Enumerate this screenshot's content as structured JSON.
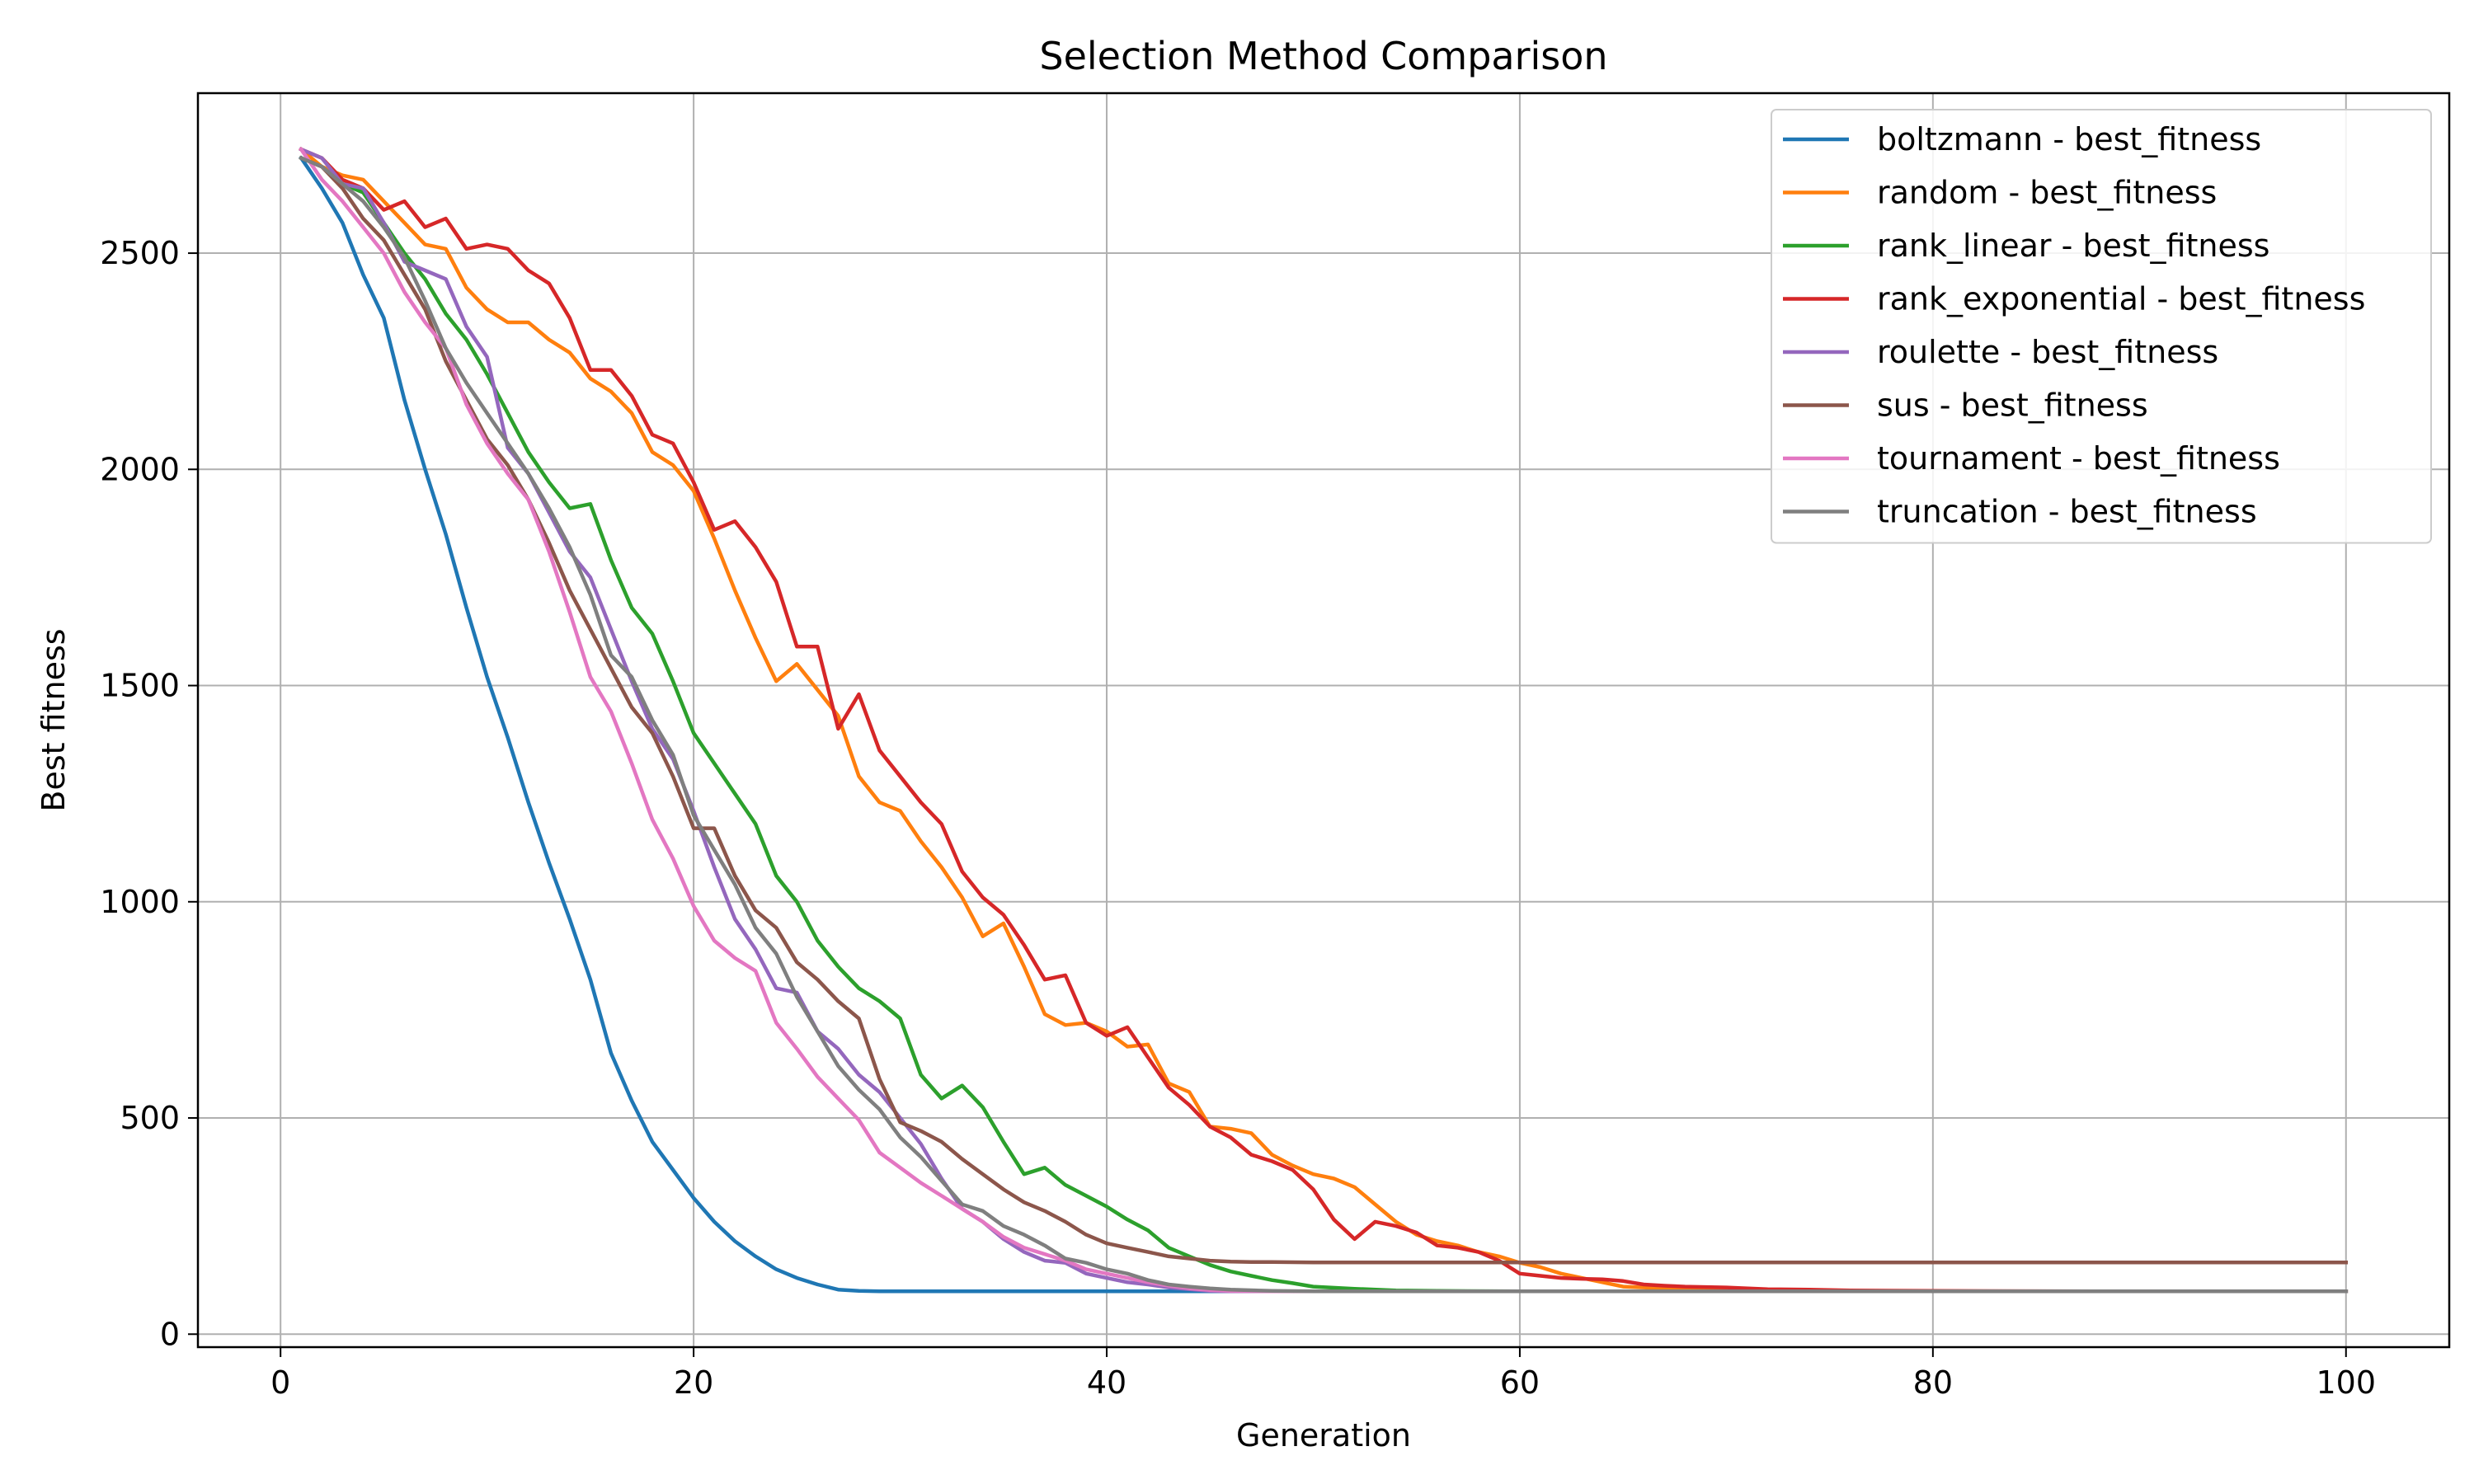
{
  "chart_data": {
    "type": "line",
    "title": "Selection Method Comparison",
    "xlabel": "Generation",
    "ylabel": "Best fitness",
    "xlim": [
      -4,
      105
    ],
    "ylim": [
      -30,
      2870
    ],
    "xticks": [
      0,
      20,
      40,
      60,
      80,
      100
    ],
    "yticks": [
      0,
      500,
      1000,
      1500,
      2000,
      2500
    ],
    "grid": true,
    "legend_position": "top-right",
    "series": [
      {
        "name": "boltzmann - best_fitness",
        "color": "#1f77b4",
        "x": [
          1,
          2,
          3,
          4,
          5,
          6,
          7,
          8,
          9,
          10,
          11,
          12,
          13,
          14,
          15,
          16,
          17,
          18,
          19,
          20,
          21,
          22,
          23,
          24,
          25,
          26,
          27,
          28,
          29,
          30,
          32,
          34,
          36,
          38,
          40,
          45,
          50,
          60,
          70,
          80,
          90,
          100
        ],
        "y": [
          2720,
          2650,
          2570,
          2450,
          2350,
          2160,
          2000,
          1850,
          1680,
          1520,
          1380,
          1230,
          1090,
          960,
          820,
          650,
          540,
          445,
          380,
          315,
          260,
          215,
          180,
          150,
          130,
          115,
          103,
          100,
          99,
          99,
          99,
          99,
          99,
          99,
          99,
          99,
          99,
          99,
          99,
          99,
          99,
          99
        ]
      },
      {
        "name": "random - best_fitness",
        "color": "#ff7f0e",
        "x": [
          1,
          2,
          3,
          4,
          5,
          6,
          7,
          8,
          9,
          10,
          11,
          12,
          13,
          14,
          15,
          16,
          17,
          18,
          19,
          20,
          21,
          22,
          23,
          24,
          25,
          26,
          27,
          28,
          29,
          30,
          31,
          32,
          33,
          34,
          35,
          36,
          37,
          38,
          39,
          40,
          41,
          42,
          43,
          44,
          45,
          46,
          47,
          48,
          49,
          50,
          51,
          52,
          53,
          54,
          55,
          56,
          57,
          58,
          59,
          60,
          61,
          62,
          63,
          64,
          65,
          66,
          68,
          70,
          75,
          80,
          90,
          100
        ],
        "y": [
          2740,
          2700,
          2680,
          2670,
          2620,
          2570,
          2520,
          2510,
          2420,
          2370,
          2340,
          2340,
          2300,
          2270,
          2210,
          2180,
          2130,
          2040,
          2010,
          1950,
          1840,
          1720,
          1610,
          1510,
          1550,
          1490,
          1430,
          1290,
          1230,
          1210,
          1140,
          1080,
          1010,
          920,
          950,
          850,
          740,
          715,
          720,
          700,
          665,
          670,
          580,
          560,
          480,
          475,
          465,
          415,
          390,
          370,
          360,
          340,
          300,
          260,
          230,
          215,
          205,
          190,
          180,
          165,
          155,
          140,
          130,
          120,
          110,
          108,
          104,
          100,
          99,
          99,
          99,
          99
        ]
      },
      {
        "name": "rank_linear - best_fitness",
        "color": "#2ca02c",
        "x": [
          1,
          2,
          3,
          4,
          5,
          6,
          7,
          8,
          9,
          10,
          11,
          12,
          13,
          14,
          15,
          16,
          17,
          18,
          19,
          20,
          21,
          22,
          23,
          24,
          25,
          26,
          27,
          28,
          29,
          30,
          31,
          32,
          33,
          34,
          35,
          36,
          37,
          38,
          39,
          40,
          41,
          42,
          43,
          44,
          45,
          46,
          47,
          48,
          49,
          50,
          52,
          54,
          56,
          60,
          70,
          80,
          90,
          100
        ],
        "y": [
          2720,
          2700,
          2660,
          2640,
          2570,
          2500,
          2440,
          2360,
          2300,
          2220,
          2130,
          2040,
          1970,
          1910,
          1920,
          1790,
          1680,
          1620,
          1510,
          1390,
          1320,
          1250,
          1180,
          1060,
          1000,
          910,
          850,
          800,
          770,
          730,
          600,
          545,
          575,
          525,
          445,
          370,
          385,
          345,
          320,
          295,
          265,
          240,
          200,
          180,
          160,
          145,
          135,
          125,
          118,
          110,
          105,
          101,
          100,
          99,
          99,
          99,
          99,
          99
        ]
      },
      {
        "name": "rank_exponential - best_fitness",
        "color": "#d62728",
        "x": [
          1,
          2,
          3,
          4,
          5,
          6,
          7,
          8,
          9,
          10,
          11,
          12,
          13,
          14,
          15,
          16,
          17,
          18,
          19,
          20,
          21,
          22,
          23,
          24,
          25,
          26,
          27,
          28,
          29,
          30,
          31,
          32,
          33,
          34,
          35,
          36,
          37,
          38,
          39,
          40,
          41,
          42,
          43,
          44,
          45,
          46,
          47,
          48,
          49,
          50,
          51,
          52,
          53,
          54,
          55,
          56,
          57,
          58,
          59,
          60,
          61,
          62,
          63,
          64,
          65,
          66,
          67,
          68,
          69,
          70,
          72,
          74,
          76,
          80,
          90,
          100
        ],
        "y": [
          2740,
          2720,
          2670,
          2650,
          2600,
          2620,
          2560,
          2580,
          2510,
          2520,
          2510,
          2460,
          2430,
          2350,
          2230,
          2230,
          2170,
          2080,
          2060,
          1970,
          1860,
          1880,
          1820,
          1740,
          1590,
          1590,
          1400,
          1480,
          1350,
          1290,
          1230,
          1180,
          1070,
          1010,
          970,
          900,
          820,
          830,
          720,
          690,
          710,
          640,
          570,
          530,
          480,
          455,
          415,
          400,
          380,
          335,
          265,
          220,
          260,
          250,
          235,
          205,
          200,
          190,
          170,
          140,
          135,
          130,
          128,
          127,
          123,
          115,
          112,
          110,
          109,
          108,
          104,
          103,
          101,
          100,
          99,
          99
        ]
      },
      {
        "name": "roulette - best_fitness",
        "color": "#9467bd",
        "x": [
          1,
          2,
          3,
          4,
          5,
          6,
          7,
          8,
          9,
          10,
          11,
          12,
          13,
          14,
          15,
          16,
          17,
          18,
          19,
          20,
          21,
          22,
          23,
          24,
          25,
          26,
          27,
          28,
          29,
          30,
          31,
          32,
          33,
          34,
          35,
          36,
          37,
          38,
          39,
          40,
          41,
          42,
          43,
          44,
          45,
          46,
          48,
          50,
          55,
          60,
          70,
          80,
          90,
          100
        ],
        "y": [
          2740,
          2720,
          2660,
          2650,
          2570,
          2480,
          2460,
          2440,
          2330,
          2260,
          2050,
          1990,
          1900,
          1810,
          1750,
          1630,
          1510,
          1400,
          1330,
          1210,
          1080,
          960,
          890,
          800,
          790,
          700,
          660,
          600,
          560,
          500,
          440,
          360,
          290,
          260,
          220,
          190,
          170,
          165,
          140,
          130,
          120,
          115,
          108,
          104,
          100,
          99,
          99,
          99,
          99,
          99,
          99,
          99,
          99,
          99
        ]
      },
      {
        "name": "sus - best_fitness",
        "color": "#8c564b",
        "x": [
          1,
          2,
          3,
          4,
          5,
          6,
          7,
          8,
          9,
          10,
          11,
          12,
          13,
          14,
          15,
          16,
          17,
          18,
          19,
          20,
          21,
          22,
          23,
          24,
          25,
          26,
          27,
          28,
          29,
          30,
          31,
          32,
          33,
          34,
          35,
          36,
          37,
          38,
          39,
          40,
          41,
          42,
          43,
          44,
          45,
          46,
          47,
          48,
          50,
          55,
          60,
          70,
          80,
          90,
          100
        ],
        "y": [
          2720,
          2700,
          2650,
          2580,
          2530,
          2450,
          2370,
          2250,
          2160,
          2070,
          2010,
          1930,
          1830,
          1720,
          1630,
          1540,
          1450,
          1390,
          1290,
          1170,
          1170,
          1060,
          980,
          940,
          860,
          820,
          770,
          730,
          590,
          490,
          470,
          445,
          405,
          370,
          335,
          305,
          285,
          260,
          230,
          210,
          200,
          190,
          180,
          175,
          170,
          168,
          167,
          167,
          166,
          166,
          166,
          166,
          166,
          166,
          166
        ]
      },
      {
        "name": "tournament - best_fitness",
        "color": "#e377c2",
        "x": [
          1,
          2,
          3,
          4,
          5,
          6,
          7,
          8,
          9,
          10,
          11,
          12,
          13,
          14,
          15,
          16,
          17,
          18,
          19,
          20,
          21,
          22,
          23,
          24,
          25,
          26,
          27,
          28,
          29,
          30,
          31,
          32,
          33,
          34,
          35,
          36,
          37,
          38,
          39,
          40,
          41,
          42,
          43,
          44,
          45,
          46,
          48,
          50,
          55,
          60,
          70,
          80,
          90,
          100
        ],
        "y": [
          2740,
          2670,
          2620,
          2560,
          2500,
          2410,
          2340,
          2280,
          2150,
          2060,
          1990,
          1930,
          1810,
          1670,
          1520,
          1440,
          1320,
          1190,
          1100,
          990,
          910,
          870,
          840,
          720,
          660,
          595,
          545,
          495,
          420,
          385,
          350,
          320,
          290,
          260,
          225,
          200,
          185,
          170,
          150,
          140,
          130,
          120,
          112,
          106,
          102,
          100,
          99,
          99,
          99,
          99,
          99,
          99,
          99,
          99
        ]
      },
      {
        "name": "truncation - best_fitness",
        "color": "#7f7f7f",
        "x": [
          1,
          2,
          3,
          4,
          5,
          6,
          7,
          8,
          9,
          10,
          11,
          12,
          13,
          14,
          15,
          16,
          17,
          18,
          19,
          20,
          21,
          22,
          23,
          24,
          25,
          26,
          27,
          28,
          29,
          30,
          31,
          32,
          33,
          34,
          35,
          36,
          37,
          38,
          39,
          40,
          41,
          42,
          43,
          44,
          45,
          46,
          48,
          50,
          55,
          60,
          70,
          80,
          90,
          100
        ],
        "y": [
          2720,
          2700,
          2660,
          2620,
          2560,
          2490,
          2390,
          2280,
          2200,
          2130,
          2060,
          1990,
          1910,
          1820,
          1710,
          1570,
          1520,
          1420,
          1340,
          1200,
          1120,
          1040,
          940,
          880,
          780,
          700,
          620,
          565,
          520,
          455,
          410,
          355,
          300,
          285,
          250,
          230,
          205,
          175,
          165,
          150,
          140,
          125,
          115,
          110,
          106,
          103,
          100,
          99,
          99,
          99,
          99,
          99,
          99,
          99
        ]
      }
    ]
  }
}
